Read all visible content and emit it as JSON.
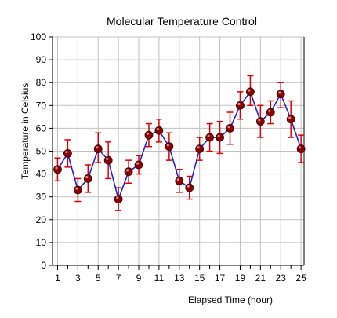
{
  "chart_data": {
    "type": "line",
    "title": "Molecular Temperature Control",
    "xlabel": "Elapsed Time (hour)",
    "ylabel": "Temperature in Celsius",
    "xlim": [
      0.5,
      25.3
    ],
    "ylim": [
      0,
      100
    ],
    "x_ticks": [
      1,
      3,
      5,
      7,
      9,
      11,
      13,
      15,
      17,
      19,
      21,
      23,
      25
    ],
    "y_ticks": [
      0,
      10,
      20,
      30,
      40,
      50,
      60,
      70,
      80,
      90,
      100
    ],
    "grid": true,
    "line_color": "#2020e0",
    "marker_color": "#8b0000",
    "error_bar_color": "#e00000",
    "series": [
      {
        "x": [
          1,
          2,
          3,
          4,
          5,
          6,
          7,
          8,
          9,
          10,
          11,
          12,
          13,
          14,
          15,
          16,
          17,
          18,
          19,
          20,
          21,
          22,
          23,
          24,
          25
        ],
        "values": [
          42,
          49,
          33,
          38,
          51,
          46,
          29,
          41,
          44,
          57,
          59,
          52,
          37,
          34,
          51,
          56,
          56,
          60,
          70,
          76,
          63,
          67,
          75,
          64,
          51
        ],
        "error_low": [
          37,
          43,
          28,
          32,
          45,
          38,
          24,
          36,
          40,
          52,
          54,
          46,
          32,
          29,
          46,
          50,
          49,
          53,
          64,
          70,
          56,
          62,
          69,
          56,
          45
        ],
        "error_high": [
          47,
          55,
          38,
          44,
          58,
          54,
          34,
          46,
          48,
          62,
          64,
          58,
          42,
          39,
          56,
          62,
          63,
          67,
          76,
          83,
          70,
          72,
          80,
          72,
          57
        ]
      }
    ]
  }
}
